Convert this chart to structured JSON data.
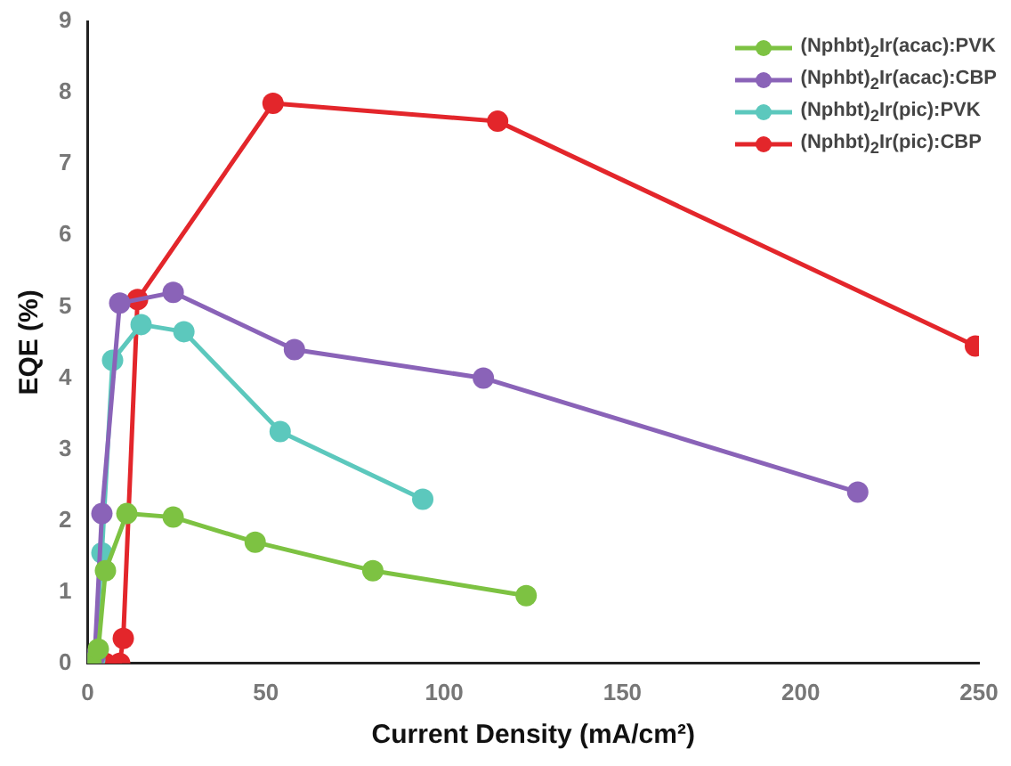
{
  "chart_data": {
    "type": "line",
    "xlabel": "Current Density (mA/cm²)",
    "ylabel": "EQE (%)",
    "xlim": [
      0,
      250
    ],
    "xticks": [
      0,
      50,
      100,
      150,
      200,
      250
    ],
    "ylim": [
      0,
      9
    ],
    "yticks": [
      0,
      1,
      2,
      3,
      4,
      5,
      6,
      7,
      8,
      9
    ],
    "grid": false,
    "legend": "top right",
    "marker": "circle",
    "line_style": "solid",
    "series": [
      {
        "name": "(Nphbt)$_{2}$Ir(acac):PVK",
        "color": "#7dc242",
        "x": [
          0,
          1,
          3,
          5,
          11,
          24,
          47,
          80,
          123
        ],
        "values": [
          0,
          0,
          0.2,
          1.3,
          2.1,
          2.05,
          1.7,
          1.3,
          0.95
        ]
      },
      {
        "name": "(Nphbt)$_{2}$Ir(acac):CBP",
        "color": "#8a63b8",
        "x": [
          0,
          1,
          2,
          4,
          9,
          24,
          58,
          111,
          216
        ],
        "values": [
          0,
          0.05,
          0.1,
          2.1,
          5.05,
          5.2,
          4.4,
          4.0,
          2.4
        ]
      },
      {
        "name": "(Nphbt)$_{2}$Ir(pic):PVK",
        "color": "#5cc8bd",
        "x": [
          0,
          2,
          4,
          7,
          15,
          27,
          54,
          94
        ],
        "values": [
          0,
          0.05,
          1.55,
          4.25,
          4.75,
          4.65,
          3.25,
          2.3
        ]
      },
      {
        "name": "(Nphbt)$_{2}$Ir(pic):CBP",
        "color": "#e3262b",
        "x": [
          0,
          5,
          9,
          10,
          14,
          52,
          115,
          249
        ],
        "values": [
          0,
          0,
          0,
          0.35,
          5.1,
          7.85,
          7.6,
          4.45
        ]
      }
    ]
  }
}
